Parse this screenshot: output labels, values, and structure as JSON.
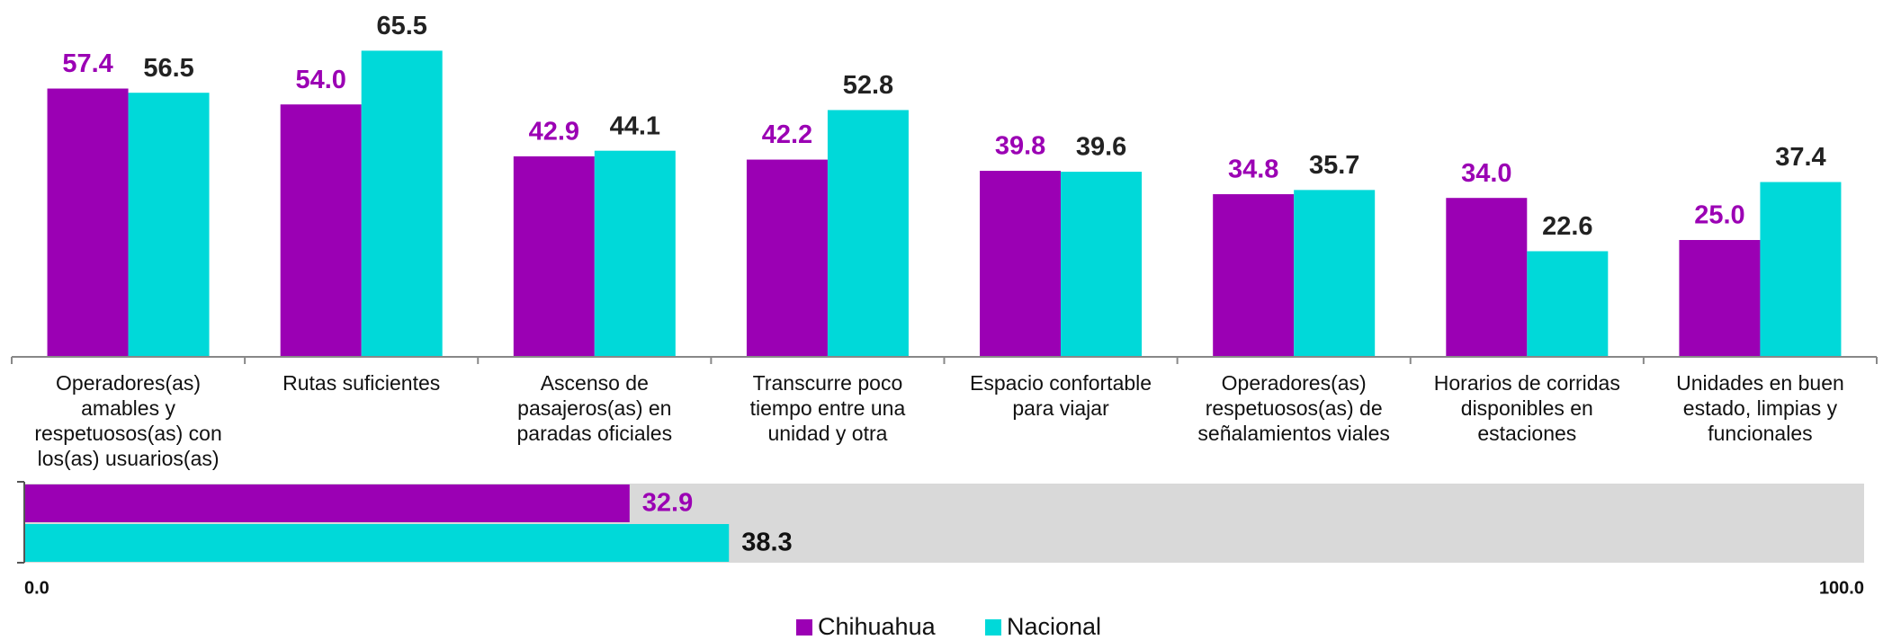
{
  "chart_data": [
    {
      "type": "bar",
      "categories": [
        "Operadores(as) amables y respetuosos(as) con los(as) usuarios(as)",
        "Rutas suficientes",
        "Ascenso de pasajeros(as) en paradas oficiales",
        "Transcurre poco tiempo entre una unidad y otra",
        "Espacio confortable para viajar",
        "Operadores(as) respetuosos(as) de señalamientos viales",
        "Horarios de corridas disponibles en estaciones",
        "Unidades en buen estado, limpias y funcionales"
      ],
      "series": [
        {
          "name": "Chihuahua",
          "color": "#9b00b4",
          "label_color": "#9b00b4",
          "values": [
            57.4,
            54.0,
            42.9,
            42.2,
            39.8,
            34.8,
            34.0,
            25.0
          ],
          "value_labels": [
            "57.4",
            "54.0",
            "42.9",
            "42.2",
            "39.8",
            "34.8",
            "34.0",
            "25.0"
          ]
        },
        {
          "name": "Nacional",
          "color": "#00d9d9",
          "label_color": "#222222",
          "values": [
            56.5,
            65.5,
            44.1,
            52.8,
            39.6,
            35.7,
            22.6,
            37.4
          ],
          "value_labels": [
            "56.5",
            "65.5",
            "44.1",
            "52.8",
            "39.6",
            "35.7",
            "22.6",
            "37.4"
          ]
        }
      ],
      "ylim": [
        0,
        70
      ],
      "legend": "bottom"
    },
    {
      "type": "hbar",
      "series": [
        {
          "color": "#9b00b4",
          "label_color": "#9b00b4",
          "values": [
            32.9
          ]
        },
        {
          "color": "#00d9d9",
          "label_color": "#111111",
          "values": [
            38.3
          ]
        }
      ],
      "xlim": [
        0,
        100
      ],
      "xticks": [
        {
          "value": 0,
          "label": "0.0"
        },
        {
          "value": 100,
          "label": "100.0"
        }
      ],
      "background": "#d9d9d9"
    }
  ]
}
